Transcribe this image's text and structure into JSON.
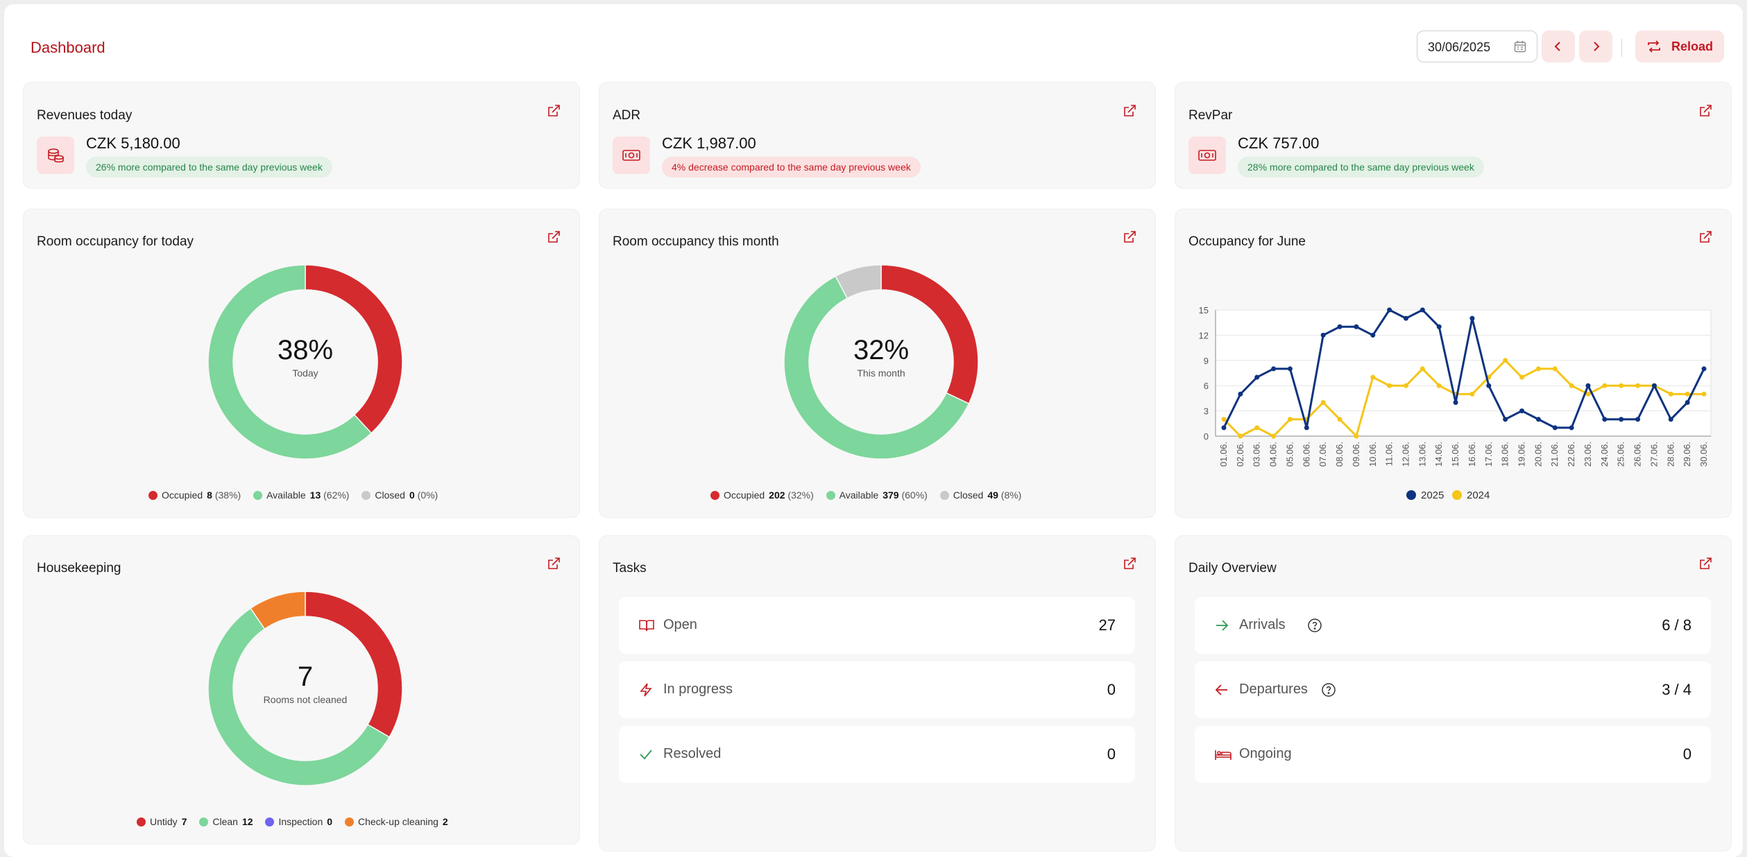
{
  "header": {
    "title": "Dashboard",
    "date_value": "30/06/2025",
    "reload_label": "Reload"
  },
  "kpis": [
    {
      "title": "Revenues today",
      "value": "CZK 5,180.00",
      "badge": "26% more compared to the same day previous week",
      "badge_tone": "green",
      "icon": "coins-icon"
    },
    {
      "title": "ADR",
      "value": "CZK 1,987.00",
      "badge": "4% decrease compared to the same day previous week",
      "badge_tone": "red",
      "icon": "banknote-icon"
    },
    {
      "title": "RevPar",
      "value": "CZK 757.00",
      "badge": "28% more compared to the same day previous week",
      "badge_tone": "green",
      "icon": "banknote-icon"
    }
  ],
  "occupancy_today": {
    "title": "Room occupancy for today",
    "center_value": "38%",
    "center_label": "Today",
    "legend": [
      {
        "label": "Occupied",
        "count": "8",
        "pct": "(38%)",
        "value": 8,
        "color": "#d42b2f"
      },
      {
        "label": "Available",
        "count": "13",
        "pct": "(62%)",
        "value": 13,
        "color": "#7dd69b"
      },
      {
        "label": "Closed",
        "count": "0",
        "pct": "(0%)",
        "value": 0,
        "color": "#c9c9c9"
      }
    ]
  },
  "occupancy_month": {
    "title": "Room occupancy this month",
    "center_value": "32%",
    "center_label": "This month",
    "legend": [
      {
        "label": "Occupied",
        "count": "202",
        "pct": "(32%)",
        "value": 202,
        "color": "#d42b2f"
      },
      {
        "label": "Available",
        "count": "379",
        "pct": "(60%)",
        "value": 379,
        "color": "#7dd69b"
      },
      {
        "label": "Closed",
        "count": "49",
        "pct": "(8%)",
        "value": 49,
        "color": "#c9c9c9"
      }
    ]
  },
  "occupancy_june_title": "Occupancy for June",
  "chart_data": {
    "type": "line",
    "x": [
      "01.06.",
      "02.06.",
      "03.06.",
      "04.06.",
      "05.06.",
      "06.06.",
      "07.06.",
      "08.06.",
      "09.06.",
      "10.06.",
      "11.06.",
      "12.06.",
      "13.06.",
      "14.06.",
      "15.06.",
      "16.06.",
      "17.06.",
      "18.06.",
      "19.06.",
      "20.06.",
      "21.06.",
      "22.06.",
      "23.06.",
      "24.06.",
      "25.06.",
      "26.06.",
      "27.06.",
      "28.06.",
      "29.06.",
      "30.06."
    ],
    "yticks": [
      "0",
      "3",
      "6",
      "9",
      "12",
      "15"
    ],
    "ylim": [
      0,
      15
    ],
    "grid": true,
    "legend_position": "bottom",
    "series": [
      {
        "name": "2025",
        "color": "#0d3380",
        "values": [
          1,
          5,
          7,
          8,
          8,
          1,
          12,
          13,
          13,
          12,
          15,
          14,
          15,
          13,
          4,
          14,
          6,
          2,
          3,
          2,
          1,
          1,
          6,
          2,
          2,
          2,
          6,
          2,
          4,
          8
        ]
      },
      {
        "name": "2024",
        "color": "#f5c518",
        "values": [
          2,
          0,
          1,
          0,
          2,
          2,
          4,
          2,
          0,
          7,
          6,
          6,
          8,
          6,
          5,
          5,
          7,
          9,
          7,
          8,
          8,
          6,
          5,
          6,
          6,
          6,
          6,
          5,
          5,
          5
        ]
      }
    ]
  },
  "housekeeping": {
    "title": "Housekeeping",
    "center_value": "7",
    "center_label": "Rooms not cleaned",
    "legend": [
      {
        "label": "Untidy",
        "count": "7",
        "value": 7,
        "color": "#d42b2f"
      },
      {
        "label": "Clean",
        "count": "12",
        "value": 12,
        "color": "#7dd69b"
      },
      {
        "label": "Inspection",
        "count": "0",
        "value": 0,
        "color": "#6f63f0"
      },
      {
        "label": "Check-up cleaning",
        "count": "2",
        "value": 2,
        "color": "#f07f2b"
      }
    ]
  },
  "tasks": {
    "title": "Tasks",
    "rows": [
      {
        "label": "Open",
        "count": "27",
        "icon": "book-open-icon"
      },
      {
        "label": "In progress",
        "count": "0",
        "icon": "zap-icon"
      },
      {
        "label": "Resolved",
        "count": "0",
        "icon": "check-icon"
      }
    ]
  },
  "daily": {
    "title": "Daily Overview",
    "rows": [
      {
        "label": "Arrivals",
        "count": "6 / 8",
        "icon": "arrow-right-icon"
      },
      {
        "label": "Departures",
        "count": "3 / 4",
        "icon": "arrow-left-icon"
      },
      {
        "label": "Ongoing",
        "count": "0",
        "icon": "bed-icon"
      }
    ]
  }
}
